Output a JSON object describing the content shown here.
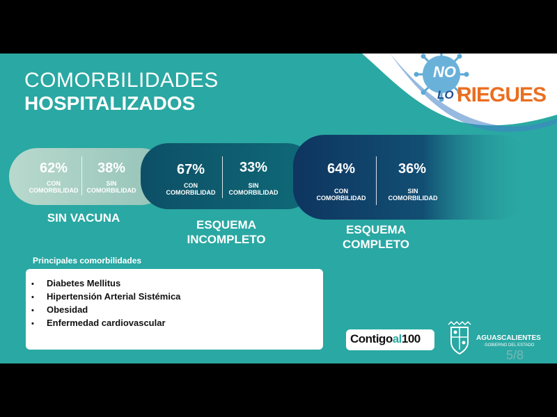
{
  "title": {
    "line1": "COMORBILIDADES",
    "line2": "HOSPITALIZADOS"
  },
  "logo": {
    "word1": "NO",
    "word2": "LO",
    "word3": "RIEGUES"
  },
  "groups": [
    {
      "label": "SIN VACUNA",
      "con": {
        "pct": "62%",
        "line1": "CON",
        "line2": "COMORBILIDAD"
      },
      "sin": {
        "pct": "38%",
        "line1": "SIN",
        "line2": "COMORBILIDAD"
      }
    },
    {
      "label_line1": "ESQUEMA",
      "label_line2": "INCOMPLETO",
      "con": {
        "pct": "67%",
        "line1": "CON",
        "line2": "COMORBILIDAD"
      },
      "sin": {
        "pct": "33%",
        "line1": "SIN",
        "line2": "COMORBILIDAD"
      }
    },
    {
      "label_line1": "ESQUEMA",
      "label_line2": "COMPLETO",
      "con": {
        "pct": "64%",
        "line1": "CON",
        "line2": "COMORBILIDAD"
      },
      "sin": {
        "pct": "36%",
        "line1": "SIN",
        "line2": "COMORBILIDAD"
      }
    }
  ],
  "comorbidities": {
    "heading": "Principales comorbilidades",
    "items": [
      "Diabetes Mellitus",
      "Hipertensión Arterial Sistémica",
      "Obesidad",
      "Enfermedad cardiovascular"
    ]
  },
  "footer": {
    "contigo": "Contigo",
    "al": "al",
    "hundred": "100",
    "state_name": "AGUASCALIENTES",
    "state_sub": "GOBIERNO DEL ESTADO",
    "page": "5/8"
  },
  "colors": {
    "teal": "#2aa8a3",
    "pill1": "#a6ccc2",
    "pill2": "#0f5f6e",
    "pill3": "#0f3e67",
    "logo_blue": "#2f66b5",
    "logo_orange": "#ea6e20"
  },
  "icons": {
    "virus": "virus-icon",
    "state_seal": "coat-of-arms-icon"
  }
}
